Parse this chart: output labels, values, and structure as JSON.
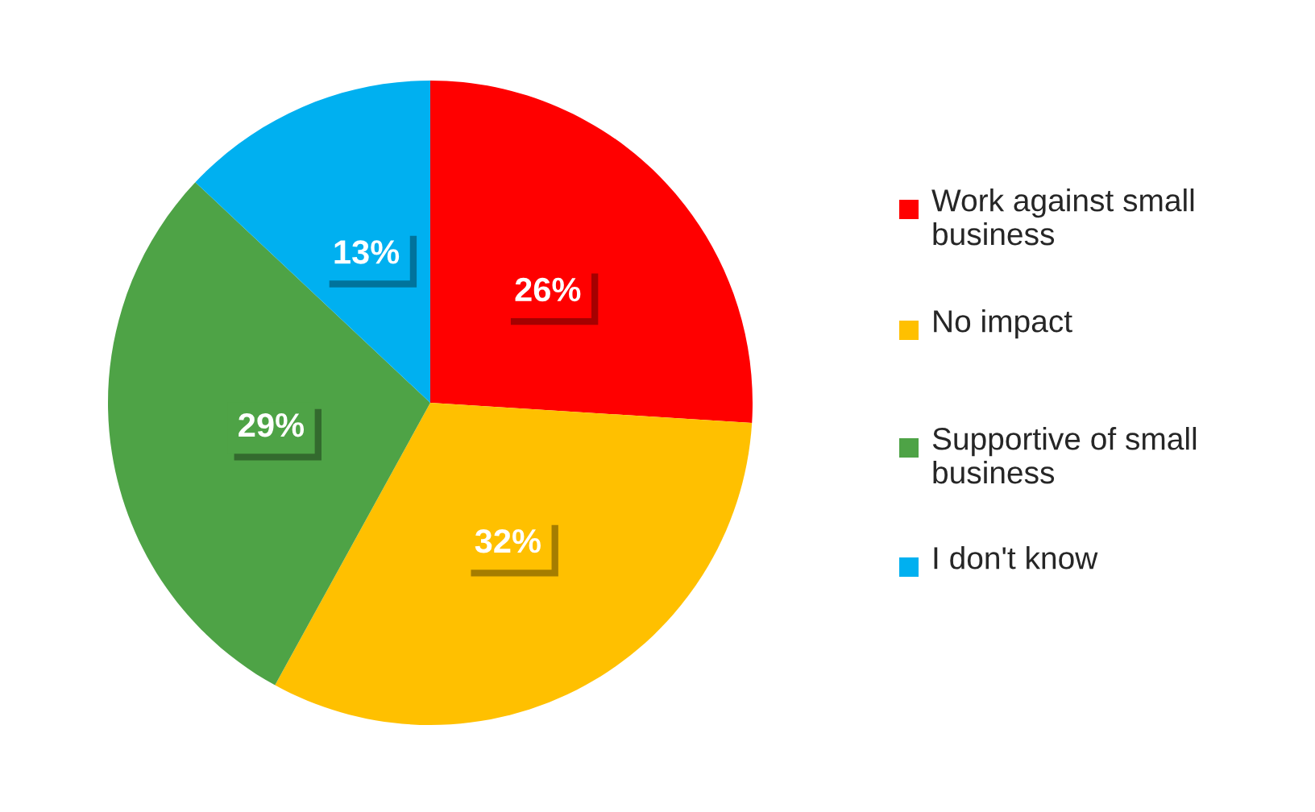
{
  "chart_data": {
    "type": "pie",
    "categories": [
      "Work against small business",
      "No impact",
      "Supportive of small business",
      "I don't know"
    ],
    "values": [
      26,
      32,
      29,
      13
    ],
    "colors": [
      "#ff0000",
      "#ffc000",
      "#4ea346",
      "#00b0f0"
    ],
    "value_labels": [
      "26%",
      "32%",
      "29%",
      "13%"
    ],
    "legend": "right"
  }
}
